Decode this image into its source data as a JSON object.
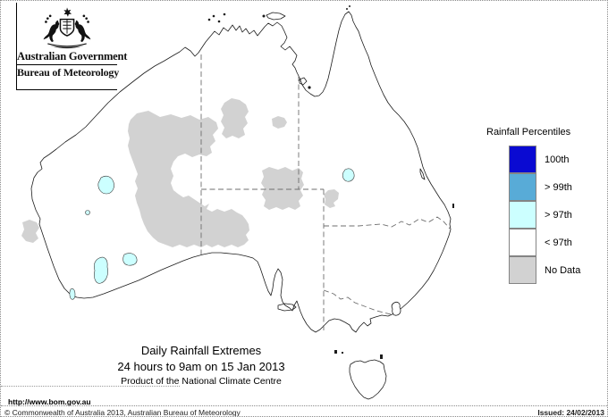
{
  "header": {
    "government_label": "Australian Government",
    "agency_label": "Bureau of Meteorology"
  },
  "legend": {
    "title": "Rainfall Percentiles",
    "items": [
      {
        "label": "100th",
        "color": "#0a0ad2"
      },
      {
        "label": "> 99th",
        "color": "#58abd7"
      },
      {
        "label": "> 97th",
        "color": "#ccffff"
      },
      {
        "label": "< 97th",
        "color": "#ffffff"
      },
      {
        "label": "No Data",
        "color": "#d2d2d2"
      }
    ]
  },
  "map": {
    "caption_line1": "Daily Rainfall Extremes",
    "caption_line2": "24 hours to 9am on 15 Jan 2013",
    "caption_line3": "Product of the National Climate Centre",
    "url": "http://www.bom.gov.au",
    "colors": {
      "coastline": "#1c1c1c",
      "state_border": "#6e6e6e",
      "no_data_fill": "#d2d2d2",
      "percentile_97_fill": "#ccffff"
    }
  },
  "footer": {
    "copyright": "© Commonwealth of Australia 2013, Australian Bureau of Meteorology",
    "issued": "Issued: 24/02/2013"
  }
}
